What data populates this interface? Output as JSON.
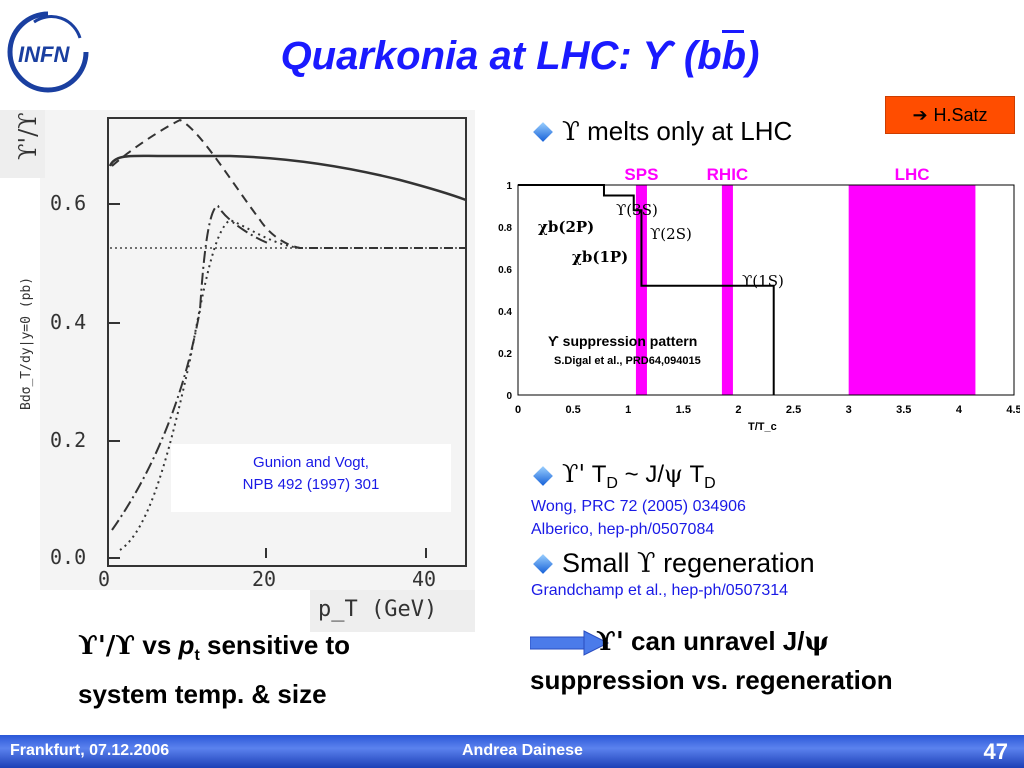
{
  "logo_text": "INFN",
  "title": {
    "prefix": "Quarkonia at LHC: ",
    "upsilon": "ϒ",
    "open": " (b",
    "bbar": "b",
    "close": ")"
  },
  "satz_box": {
    "arrow": "➔",
    "label": "H.Satz"
  },
  "left_plot": {
    "y_axis_label": "Bdσ_T/dy|y=0 (pb)",
    "y_ticks": [
      "0.6",
      "0.4",
      "0.2",
      "0.0"
    ],
    "x_ticks": [
      "0",
      "20",
      "40"
    ],
    "x_label": "p_T (GeV)",
    "ratio_label": "ϒ'/ϒ",
    "ref_line1": "Gunion and Vogt,",
    "ref_line2": "NPB 492 (1997) 301"
  },
  "bullets": {
    "b1": {
      "sym": "ϒ",
      "text": " melts only at LHC"
    },
    "b2": {
      "sym": "ϒ'",
      "t1": " T",
      "sub1": "D",
      "mid": " ~ J/",
      "psi": "ψ",
      "t2": " T",
      "sub2": "D"
    },
    "b2_refs": [
      "Wong, PRC 72 (2005) 034906",
      "Alberico, hep-ph/0507084"
    ],
    "b3": {
      "pre": "Small ",
      "sym": "ϒ",
      "post": " regeneration"
    },
    "b3_ref": "Grandchamp et al., hep-ph/0507314"
  },
  "chart_data": {
    "type": "line",
    "xlabel": "T/T_c",
    "xlim": [
      0,
      4.5
    ],
    "ylim": [
      0,
      1
    ],
    "x_ticks": [
      "0",
      "0.5",
      "1",
      "1.5",
      "2",
      "2.5",
      "3",
      "3.5",
      "4",
      "4.5"
    ],
    "y_ticks": [
      "0",
      "0.2",
      "0.4",
      "0.6",
      "0.8",
      "1"
    ],
    "bands": [
      {
        "name": "SPS",
        "x0": 1.07,
        "x1": 1.17,
        "color": "#ff00ff"
      },
      {
        "name": "RHIC",
        "x0": 1.85,
        "x1": 1.95,
        "color": "#ff00ff"
      },
      {
        "name": "LHC",
        "x0": 3.0,
        "x1": 4.15,
        "color": "#ff00ff"
      }
    ],
    "steps": [
      [
        0,
        1
      ],
      [
        0.78,
        1
      ],
      [
        0.78,
        0.95
      ],
      [
        1.05,
        0.95
      ],
      [
        1.05,
        0.88
      ],
      [
        1.12,
        0.88
      ],
      [
        1.12,
        0.52
      ],
      [
        2.32,
        0.52
      ],
      [
        2.32,
        0
      ]
    ],
    "state_labels": [
      "ϒ(3S)",
      "χb(2P)",
      "ϒ(2S)",
      "χb(1P)",
      "ϒ(1S)"
    ],
    "annotation_title": "ϒ suppression pattern",
    "annotation_ref": "S.Digal et al., PRD64,094015",
    "band_color": "#ff00ff",
    "band_label_color": "#ff00ff"
  },
  "captions": {
    "left_line1_sym": "ϒ'/ϒ",
    "left_line1_vs": " vs ",
    "left_line1_p": "p",
    "left_line1_sub": "t",
    "left_line1_rest": " sensitive to",
    "left_line2": "system temp. & size",
    "right_line1_sym": "ϒ'",
    "right_line1_rest": " can unravel J/",
    "right_line1_psi": "ψ",
    "right_line2": "suppression vs. regeneration"
  },
  "footer": {
    "left": "Frankfurt, 07.12.2006",
    "center": "Andrea Dainese",
    "page": "47"
  },
  "colors": {
    "title": "#1a1aff",
    "reference_text": "#1a1ae6",
    "accent_box": "#ff4d00",
    "footer": "#2b58d8"
  }
}
